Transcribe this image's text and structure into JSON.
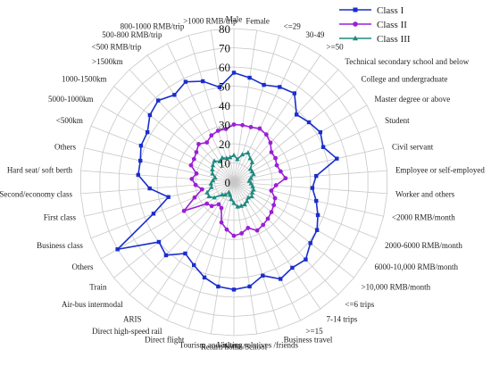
{
  "chart_data": {
    "type": "radar",
    "title": "",
    "r_range": [
      0,
      80
    ],
    "r_ticks": [
      0,
      10,
      20,
      30,
      40,
      50,
      60,
      70,
      80
    ],
    "grid": true,
    "legend_position": "top-right",
    "categories": [
      "Male",
      "Female",
      "<=29",
      "30-49",
      ">=50",
      "Technical secondary school and below",
      "College and undergraduate",
      "Master degree or above",
      "Student",
      "Civil servant",
      "Employee or self-employed",
      "Worker and others",
      "<2000 RMB/month",
      "2000-6000 RMB/month",
      "6000-10,000 RMB/month",
      ">10,000 RMB/month",
      "<=6 trips",
      "7-14 trips",
      ">=15",
      "Business travel",
      "Visiting relatives /friends",
      "Return home/School",
      "Tourism and others",
      "Direct flight",
      "Direct high-speed rail",
      "ARIS",
      "Air-bus intermodal",
      "Train",
      "Others",
      "Business class",
      "First class",
      "Second/economy class",
      "Hard seat/ soft berth",
      "Others",
      "<500km",
      "5000-1000km",
      "1000-1500km",
      ">1500km",
      "<500 RMB/trip",
      "500-800 RMB/trip",
      "800-1000 RMB/trip",
      ">1000 RMB/trip"
    ],
    "series": [
      {
        "name": "Class I",
        "color": "#1a2ecc",
        "marker": "square",
        "values": [
          57,
          55,
          53,
          55,
          56,
          48,
          50,
          52,
          50,
          55,
          43,
          41,
          44,
          47,
          50,
          51,
          55,
          54,
          56,
          51,
          55,
          56,
          55,
          52,
          48,
          45,
          52,
          50,
          70,
          45,
          35,
          44,
          50,
          50,
          52,
          52,
          56,
          58,
          55,
          58,
          55,
          50
        ]
      },
      {
        "name": "Class II",
        "color": "#9b1fd6",
        "marker": "circle",
        "values": [
          30,
          30,
          30,
          31,
          30,
          28,
          25,
          25,
          24,
          25,
          27,
          22,
          20,
          23,
          24,
          25,
          26,
          27,
          28,
          25,
          27,
          28,
          25,
          22,
          15,
          14,
          17,
          18,
          30,
          22,
          17,
          20,
          22,
          20,
          24,
          24,
          25,
          27,
          25,
          27,
          28,
          28
        ]
      },
      {
        "name": "Class III",
        "color": "#1f8a80",
        "marker": "triangle",
        "values": [
          14,
          12,
          15,
          17,
          15,
          14,
          11,
          11,
          11,
          9,
          8,
          9,
          10,
          11,
          11,
          12,
          11,
          12,
          13,
          13,
          13,
          11,
          9,
          7,
          6,
          8,
          9,
          13,
          15,
          15,
          12,
          12,
          11,
          10,
          12,
          13,
          14,
          15,
          13,
          14,
          13,
          13
        ]
      }
    ]
  }
}
